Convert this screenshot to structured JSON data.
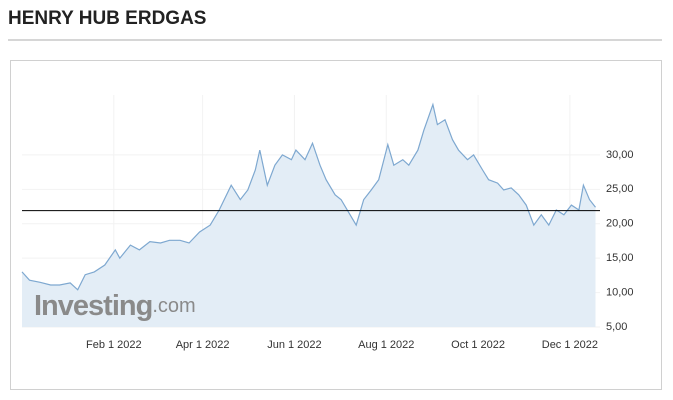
{
  "chart_data": {
    "type": "area",
    "title": "HENRY HUB ERDGAS",
    "watermark": "Investing",
    "watermark_suffix": ".com",
    "line_color": "#7ea8d0",
    "fill_color": "#e3edf6",
    "price_line": 21.9,
    "price_line_color": "#000000",
    "grid": true,
    "xlim": [
      "2021-12-02",
      "2022-12-21"
    ],
    "xticks": [
      {
        "value": "2022-02-01",
        "label": "Feb 1 2022"
      },
      {
        "value": "2022-04-01",
        "label": "Apr 1 2022"
      },
      {
        "value": "2022-06-01",
        "label": "Jun 1 2022"
      },
      {
        "value": "2022-08-01",
        "label": "Aug 1 2022"
      },
      {
        "value": "2022-10-01",
        "label": "Oct 1 2022"
      },
      {
        "value": "2022-12-01",
        "label": "Dec 1 2022"
      }
    ],
    "ylim": [
      5,
      38.7
    ],
    "yticks": [
      {
        "value": 5,
        "label": "5,00"
      },
      {
        "value": 10,
        "label": "10,00"
      },
      {
        "value": 15,
        "label": "15,00"
      },
      {
        "value": 20,
        "label": "20,00"
      },
      {
        "value": 25,
        "label": "25,00"
      },
      {
        "value": 30,
        "label": "30,00"
      }
    ],
    "x": [
      "2021-12-02",
      "2021-12-07",
      "2021-12-14",
      "2021-12-21",
      "2021-12-27",
      "2022-01-03",
      "2022-01-08",
      "2022-01-13",
      "2022-01-19",
      "2022-01-26",
      "2022-02-02",
      "2022-02-05",
      "2022-02-12",
      "2022-02-18",
      "2022-02-25",
      "2022-03-04",
      "2022-03-10",
      "2022-03-17",
      "2022-03-23",
      "2022-03-30",
      "2022-04-06",
      "2022-04-12",
      "2022-04-20",
      "2022-04-26",
      "2022-05-01",
      "2022-05-06",
      "2022-05-09",
      "2022-05-14",
      "2022-05-19",
      "2022-05-24",
      "2022-05-30",
      "2022-06-02",
      "2022-06-08",
      "2022-06-13",
      "2022-06-18",
      "2022-06-22",
      "2022-06-28",
      "2022-07-02",
      "2022-07-08",
      "2022-07-12",
      "2022-07-17",
      "2022-07-22",
      "2022-07-27",
      "2022-08-02",
      "2022-08-06",
      "2022-08-12",
      "2022-08-16",
      "2022-08-22",
      "2022-08-26",
      "2022-09-01",
      "2022-09-04",
      "2022-09-09",
      "2022-09-14",
      "2022-09-18",
      "2022-09-24",
      "2022-09-28",
      "2022-10-04",
      "2022-10-08",
      "2022-10-14",
      "2022-10-18",
      "2022-10-23",
      "2022-10-28",
      "2022-11-02",
      "2022-11-07",
      "2022-11-12",
      "2022-11-17",
      "2022-11-22",
      "2022-11-27",
      "2022-12-02",
      "2022-12-07",
      "2022-12-10",
      "2022-12-14",
      "2022-12-18"
    ],
    "values": [
      13.0,
      11.8,
      11.5,
      11.1,
      11.1,
      11.4,
      10.4,
      12.6,
      13.0,
      14.0,
      16.2,
      15.0,
      16.9,
      16.2,
      17.4,
      17.2,
      17.6,
      17.6,
      17.2,
      18.8,
      19.8,
      22.0,
      25.6,
      23.5,
      24.9,
      27.8,
      30.7,
      25.6,
      28.5,
      30.0,
      29.3,
      30.7,
      29.3,
      31.7,
      28.5,
      26.4,
      24.2,
      23.5,
      21.3,
      19.8,
      23.5,
      24.9,
      26.4,
      31.5,
      28.5,
      29.3,
      28.5,
      30.7,
      33.6,
      37.3,
      34.4,
      35.1,
      32.2,
      30.7,
      29.3,
      30.0,
      27.8,
      26.4,
      25.9,
      24.9,
      25.2,
      24.2,
      22.7,
      19.8,
      21.3,
      19.8,
      22.0,
      21.3,
      22.7,
      22.0,
      25.6,
      23.5,
      22.4
    ]
  }
}
